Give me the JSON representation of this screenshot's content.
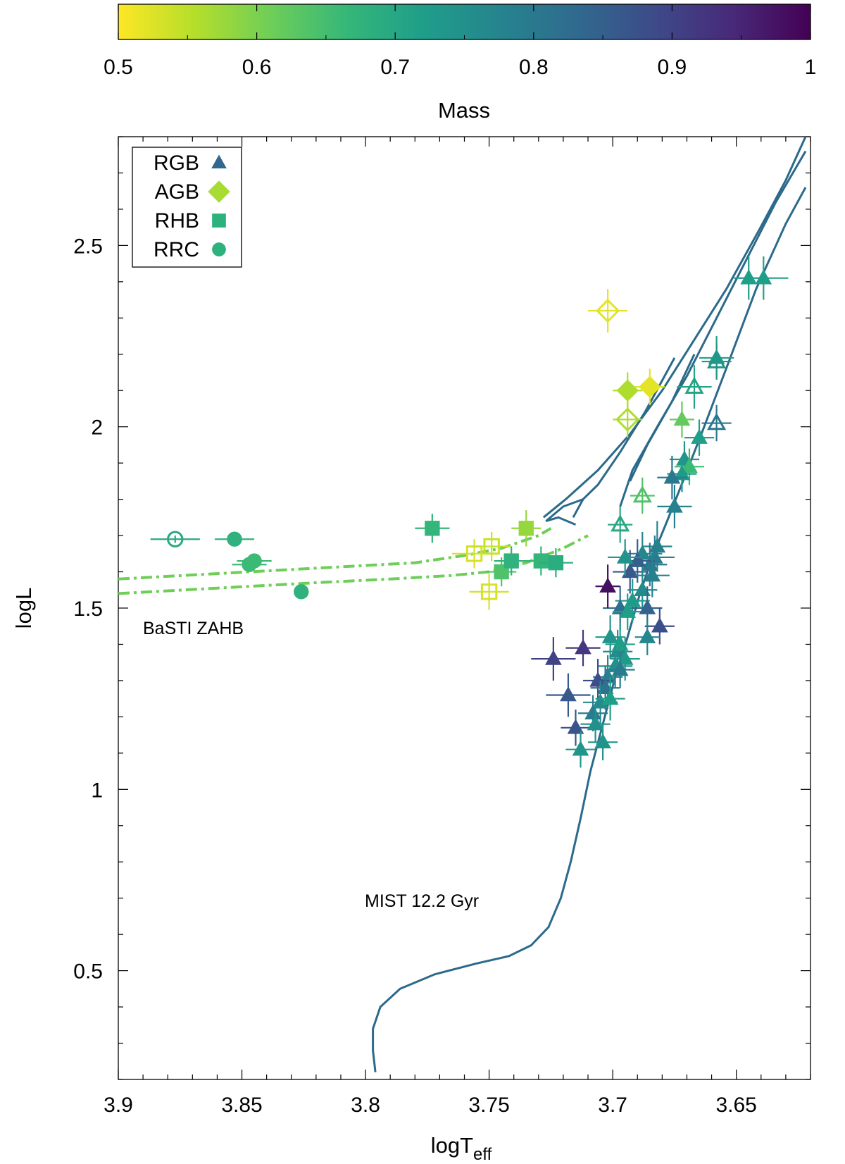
{
  "chart_data": {
    "type": "scatter",
    "title": "",
    "xlabel": "logT",
    "xlabel_subscript": "eff",
    "ylabel": "logL",
    "xlim": [
      3.9,
      3.62
    ],
    "ylim": [
      0.2,
      2.8
    ],
    "x_ticks": [
      3.9,
      3.85,
      3.8,
      3.75,
      3.7,
      3.65
    ],
    "x_tick_labels": [
      "3.9",
      "3.85",
      "3.8",
      "3.75",
      "3.7",
      "3.65"
    ],
    "y_ticks": [
      0.5,
      1,
      1.5,
      2,
      2.5
    ],
    "y_tick_labels": [
      "0.5",
      "1",
      "1.5",
      "2",
      "2.5"
    ],
    "colorbar": {
      "label": "Mass",
      "range": [
        0.5,
        1
      ],
      "ticks": [
        0.5,
        0.6,
        0.7,
        0.8,
        0.9,
        1
      ],
      "tick_labels": [
        "0.5",
        "0.6",
        "0.7",
        "0.8",
        "0.9",
        "1"
      ],
      "colormap": [
        "#fde725",
        "#b5de2b",
        "#6ece58",
        "#35b779",
        "#1f9e89",
        "#26828e",
        "#31688e",
        "#3e4989",
        "#482878",
        "#440154"
      ]
    },
    "legend": {
      "position": "top-left",
      "entries": [
        {
          "label": "RGB",
          "marker": "triangle",
          "color": "#31688e"
        },
        {
          "label": "AGB",
          "marker": "diamond",
          "color": "#a8db34"
        },
        {
          "label": "RHB",
          "marker": "square",
          "color": "#2db27d"
        },
        {
          "label": "RRC",
          "marker": "circle",
          "color": "#2db27d"
        }
      ]
    },
    "annotations": [
      {
        "text": "BaSTI ZAHB",
        "x": 3.89,
        "y": 1.45
      },
      {
        "text": "MIST 12.2 Gyr",
        "x": 3.795,
        "y": 0.7
      }
    ],
    "models": {
      "mist_color": "#2b6a8a",
      "mist_label": "MIST 12.2 Gyr",
      "mist_rgb": [
        [
          3.796,
          0.22
        ],
        [
          3.797,
          0.28
        ],
        [
          3.797,
          0.34
        ],
        [
          3.794,
          0.4
        ],
        [
          3.786,
          0.45
        ],
        [
          3.772,
          0.49
        ],
        [
          3.755,
          0.52
        ],
        [
          3.742,
          0.54
        ],
        [
          3.733,
          0.57
        ],
        [
          3.726,
          0.62
        ],
        [
          3.721,
          0.7
        ],
        [
          3.717,
          0.8
        ],
        [
          3.713,
          0.92
        ],
        [
          3.709,
          1.05
        ],
        [
          3.704,
          1.18
        ],
        [
          3.699,
          1.31
        ],
        [
          3.694,
          1.42
        ],
        [
          3.689,
          1.54
        ],
        [
          3.684,
          1.64
        ],
        [
          3.678,
          1.74
        ],
        [
          3.671,
          1.86
        ],
        [
          3.663,
          2.0
        ],
        [
          3.653,
          2.18
        ],
        [
          3.642,
          2.38
        ],
        [
          3.63,
          2.56
        ],
        [
          3.622,
          2.66
        ]
      ],
      "mist_agb_inner": [
        [
          3.697,
          1.78
        ],
        [
          3.692,
          1.88
        ],
        [
          3.682,
          2.0
        ],
        [
          3.67,
          2.14
        ],
        [
          3.658,
          2.3
        ],
        [
          3.646,
          2.46
        ],
        [
          3.634,
          2.62
        ],
        [
          3.622,
          2.76
        ]
      ],
      "mist_agb_outer": [
        [
          3.728,
          1.75
        ],
        [
          3.719,
          1.8
        ],
        [
          3.706,
          1.88
        ],
        [
          3.693,
          1.98
        ],
        [
          3.68,
          2.1
        ],
        [
          3.667,
          2.24
        ],
        [
          3.654,
          2.38
        ],
        [
          3.641,
          2.54
        ],
        [
          3.63,
          2.68
        ],
        [
          3.622,
          2.8
        ]
      ],
      "mist_hook1": [
        [
          3.712,
          1.8
        ],
        [
          3.706,
          1.84
        ],
        [
          3.697,
          1.93
        ],
        [
          3.687,
          2.04
        ],
        [
          3.675,
          2.19
        ]
      ],
      "mist_hook2": [
        [
          3.693,
          1.85
        ],
        [
          3.686,
          1.95
        ],
        [
          3.676,
          2.07
        ],
        [
          3.667,
          2.2
        ]
      ],
      "mist_hook3": [
        [
          3.715,
          1.73
        ],
        [
          3.722,
          1.75
        ],
        [
          3.727,
          1.74
        ],
        [
          3.72,
          1.78
        ],
        [
          3.712,
          1.8
        ],
        [
          3.716,
          1.75
        ]
      ],
      "zahb_color": "#6ece58",
      "zahb_label": "BaSTI ZAHB",
      "zahb_upper": [
        [
          3.9,
          1.58
        ],
        [
          3.86,
          1.595
        ],
        [
          3.82,
          1.61
        ],
        [
          3.78,
          1.625
        ],
        [
          3.76,
          1.645
        ],
        [
          3.745,
          1.665
        ],
        [
          3.73,
          1.7
        ],
        [
          3.725,
          1.72
        ]
      ],
      "zahb_lower": [
        [
          3.9,
          1.54
        ],
        [
          3.86,
          1.555
        ],
        [
          3.82,
          1.57
        ],
        [
          3.79,
          1.58
        ],
        [
          3.765,
          1.59
        ],
        [
          3.75,
          1.6
        ],
        [
          3.735,
          1.625
        ],
        [
          3.72,
          1.665
        ],
        [
          3.71,
          1.7
        ]
      ]
    },
    "series": [
      {
        "name": "RRC",
        "marker": "circle",
        "points": [
          {
            "x": 3.877,
            "y": 1.69,
            "mass": 0.7,
            "open": true,
            "xerr": 0.01,
            "yerr": 0.01
          },
          {
            "x": 3.853,
            "y": 1.69,
            "mass": 0.68,
            "open": false,
            "xerr": 0.008,
            "yerr": 0.01
          },
          {
            "x": 3.845,
            "y": 1.63,
            "mass": 0.66,
            "open": false,
            "xerr": 0.007,
            "yerr": 0.01
          },
          {
            "x": 3.847,
            "y": 1.62,
            "mass": 0.66,
            "open": false,
            "xerr": 0.007,
            "yerr": 0.01
          },
          {
            "x": 3.826,
            "y": 1.545,
            "mass": 0.68,
            "open": false,
            "xerr": 0.002,
            "yerr": 0.01
          }
        ]
      },
      {
        "name": "RHB",
        "marker": "square",
        "points": [
          {
            "x": 3.773,
            "y": 1.72,
            "mass": 0.67,
            "open": false,
            "xerr": 0.007,
            "yerr": 0.04
          },
          {
            "x": 3.756,
            "y": 1.65,
            "mass": 0.53,
            "open": true,
            "xerr": 0.009,
            "yerr": 0.04
          },
          {
            "x": 3.749,
            "y": 1.67,
            "mass": 0.54,
            "open": true,
            "xerr": 0.008,
            "yerr": 0.04
          },
          {
            "x": 3.75,
            "y": 1.545,
            "mass": 0.53,
            "open": true,
            "xerr": 0.008,
            "yerr": 0.05
          },
          {
            "x": 3.745,
            "y": 1.6,
            "mass": 0.64,
            "open": false,
            "xerr": 0.006,
            "yerr": 0.04
          },
          {
            "x": 3.741,
            "y": 1.63,
            "mass": 0.68,
            "open": false,
            "xerr": 0.007,
            "yerr": 0.04
          },
          {
            "x": 3.735,
            "y": 1.72,
            "mass": 0.58,
            "open": false,
            "xerr": 0.006,
            "yerr": 0.05
          },
          {
            "x": 3.729,
            "y": 1.63,
            "mass": 0.67,
            "open": false,
            "xerr": 0.007,
            "yerr": 0.04
          },
          {
            "x": 3.723,
            "y": 1.625,
            "mass": 0.69,
            "open": false,
            "xerr": 0.007,
            "yerr": 0.04
          }
        ]
      },
      {
        "name": "AGB",
        "marker": "diamond",
        "points": [
          {
            "x": 3.702,
            "y": 2.32,
            "mass": 0.52,
            "open": true,
            "xerr": 0.008,
            "yerr": 0.06
          },
          {
            "x": 3.694,
            "y": 2.1,
            "mass": 0.56,
            "open": false,
            "xerr": 0.006,
            "yerr": 0.05
          },
          {
            "x": 3.685,
            "y": 2.11,
            "mass": 0.52,
            "open": false,
            "xerr": 0.006,
            "yerr": 0.05
          },
          {
            "x": 3.694,
            "y": 2.02,
            "mass": 0.56,
            "open": true,
            "xerr": 0.006,
            "yerr": 0.05
          }
        ]
      },
      {
        "name": "RGB",
        "marker": "triangle",
        "points": [
          {
            "x": 3.645,
            "y": 2.41,
            "mass": 0.72,
            "open": false,
            "xerr": 0.006,
            "yerr": 0.06
          },
          {
            "x": 3.639,
            "y": 2.41,
            "mass": 0.72,
            "open": false,
            "xerr": 0.01,
            "yerr": 0.06
          },
          {
            "x": 3.658,
            "y": 2.19,
            "mass": 0.72,
            "open": false,
            "xerr": 0.007,
            "yerr": 0.06
          },
          {
            "x": 3.658,
            "y": 2.18,
            "mass": 0.74,
            "open": true,
            "xerr": 0.006,
            "yerr": 0.05
          },
          {
            "x": 3.667,
            "y": 2.11,
            "mass": 0.71,
            "open": true,
            "xerr": 0.007,
            "yerr": 0.06
          },
          {
            "x": 3.658,
            "y": 2.01,
            "mass": 0.8,
            "open": true,
            "xerr": 0.006,
            "yerr": 0.05
          },
          {
            "x": 3.672,
            "y": 2.02,
            "mass": 0.62,
            "open": false,
            "xerr": 0.005,
            "yerr": 0.05
          },
          {
            "x": 3.665,
            "y": 1.97,
            "mass": 0.72,
            "open": false,
            "xerr": 0.006,
            "yerr": 0.05
          },
          {
            "x": 3.671,
            "y": 1.91,
            "mass": 0.74,
            "open": false,
            "xerr": 0.006,
            "yerr": 0.05
          },
          {
            "x": 3.669,
            "y": 1.89,
            "mass": 0.66,
            "open": false,
            "xerr": 0.006,
            "yerr": 0.05
          },
          {
            "x": 3.672,
            "y": 1.87,
            "mass": 0.73,
            "open": false,
            "xerr": 0.006,
            "yerr": 0.05
          },
          {
            "x": 3.676,
            "y": 1.86,
            "mass": 0.8,
            "open": false,
            "xerr": 0.006,
            "yerr": 0.06
          },
          {
            "x": 3.688,
            "y": 1.81,
            "mass": 0.64,
            "open": true,
            "xerr": 0.005,
            "yerr": 0.05
          },
          {
            "x": 3.675,
            "y": 1.78,
            "mass": 0.78,
            "open": false,
            "xerr": 0.007,
            "yerr": 0.06
          },
          {
            "x": 3.697,
            "y": 1.73,
            "mass": 0.7,
            "open": true,
            "xerr": 0.005,
            "yerr": 0.05
          },
          {
            "x": 3.682,
            "y": 1.67,
            "mass": 0.78,
            "open": false,
            "xerr": 0.006,
            "yerr": 0.07
          },
          {
            "x": 3.683,
            "y": 1.64,
            "mass": 0.79,
            "open": false,
            "xerr": 0.008,
            "yerr": 0.06
          },
          {
            "x": 3.685,
            "y": 1.62,
            "mass": 0.8,
            "open": false,
            "xerr": 0.007,
            "yerr": 0.06
          },
          {
            "x": 3.688,
            "y": 1.65,
            "mass": 0.77,
            "open": false,
            "xerr": 0.008,
            "yerr": 0.06
          },
          {
            "x": 3.69,
            "y": 1.63,
            "mass": 0.85,
            "open": false,
            "xerr": 0.007,
            "yerr": 0.06
          },
          {
            "x": 3.693,
            "y": 1.6,
            "mass": 0.86,
            "open": false,
            "xerr": 0.007,
            "yerr": 0.06
          },
          {
            "x": 3.695,
            "y": 1.64,
            "mass": 0.74,
            "open": false,
            "xerr": 0.007,
            "yerr": 0.05
          },
          {
            "x": 3.684,
            "y": 1.59,
            "mass": 0.78,
            "open": false,
            "xerr": 0.007,
            "yerr": 0.06
          },
          {
            "x": 3.688,
            "y": 1.55,
            "mass": 0.76,
            "open": false,
            "xerr": 0.006,
            "yerr": 0.06
          },
          {
            "x": 3.692,
            "y": 1.52,
            "mass": 0.73,
            "open": false,
            "xerr": 0.007,
            "yerr": 0.06
          },
          {
            "x": 3.697,
            "y": 1.5,
            "mass": 0.82,
            "open": false,
            "xerr": 0.007,
            "yerr": 0.06
          },
          {
            "x": 3.694,
            "y": 1.49,
            "mass": 0.72,
            "open": false,
            "xerr": 0.006,
            "yerr": 0.05
          },
          {
            "x": 3.686,
            "y": 1.5,
            "mass": 0.84,
            "open": false,
            "xerr": 0.006,
            "yerr": 0.06
          },
          {
            "x": 3.702,
            "y": 1.56,
            "mass": 0.98,
            "open": false,
            "xerr": 0.005,
            "yerr": 0.06
          },
          {
            "x": 3.681,
            "y": 1.45,
            "mass": 0.88,
            "open": false,
            "xerr": 0.006,
            "yerr": 0.05
          },
          {
            "x": 3.686,
            "y": 1.42,
            "mass": 0.77,
            "open": false,
            "xerr": 0.005,
            "yerr": 0.05
          },
          {
            "x": 3.701,
            "y": 1.42,
            "mass": 0.74,
            "open": false,
            "xerr": 0.006,
            "yerr": 0.06
          },
          {
            "x": 3.698,
            "y": 1.38,
            "mass": 0.76,
            "open": false,
            "xerr": 0.006,
            "yerr": 0.06
          },
          {
            "x": 3.697,
            "y": 1.4,
            "mass": 0.72,
            "open": false,
            "xerr": 0.006,
            "yerr": 0.06
          },
          {
            "x": 3.695,
            "y": 1.36,
            "mass": 0.73,
            "open": false,
            "xerr": 0.006,
            "yerr": 0.06
          },
          {
            "x": 3.699,
            "y": 1.34,
            "mass": 0.75,
            "open": false,
            "xerr": 0.007,
            "yerr": 0.06
          },
          {
            "x": 3.702,
            "y": 1.31,
            "mass": 0.78,
            "open": false,
            "xerr": 0.006,
            "yerr": 0.06
          },
          {
            "x": 3.697,
            "y": 1.33,
            "mass": 0.79,
            "open": false,
            "xerr": 0.006,
            "yerr": 0.05
          },
          {
            "x": 3.712,
            "y": 1.39,
            "mass": 0.92,
            "open": false,
            "xerr": 0.007,
            "yerr": 0.05
          },
          {
            "x": 3.724,
            "y": 1.36,
            "mass": 0.9,
            "open": false,
            "xerr": 0.009,
            "yerr": 0.06
          },
          {
            "x": 3.706,
            "y": 1.3,
            "mass": 0.88,
            "open": false,
            "xerr": 0.006,
            "yerr": 0.06
          },
          {
            "x": 3.703,
            "y": 1.28,
            "mass": 0.81,
            "open": false,
            "xerr": 0.006,
            "yerr": 0.06
          },
          {
            "x": 3.718,
            "y": 1.26,
            "mass": 0.86,
            "open": false,
            "xerr": 0.009,
            "yerr": 0.06
          },
          {
            "x": 3.705,
            "y": 1.24,
            "mass": 0.76,
            "open": false,
            "xerr": 0.007,
            "yerr": 0.06
          },
          {
            "x": 3.701,
            "y": 1.25,
            "mass": 0.72,
            "open": false,
            "xerr": 0.006,
            "yerr": 0.06
          },
          {
            "x": 3.708,
            "y": 1.21,
            "mass": 0.79,
            "open": false,
            "xerr": 0.006,
            "yerr": 0.05
          },
          {
            "x": 3.715,
            "y": 1.17,
            "mass": 0.87,
            "open": false,
            "xerr": 0.006,
            "yerr": 0.05
          },
          {
            "x": 3.707,
            "y": 1.18,
            "mass": 0.75,
            "open": false,
            "xerr": 0.006,
            "yerr": 0.05
          },
          {
            "x": 3.713,
            "y": 1.11,
            "mass": 0.74,
            "open": false,
            "xerr": 0.006,
            "yerr": 0.05
          },
          {
            "x": 3.704,
            "y": 1.13,
            "mass": 0.74,
            "open": false,
            "xerr": 0.006,
            "yerr": 0.05
          }
        ]
      }
    ]
  }
}
